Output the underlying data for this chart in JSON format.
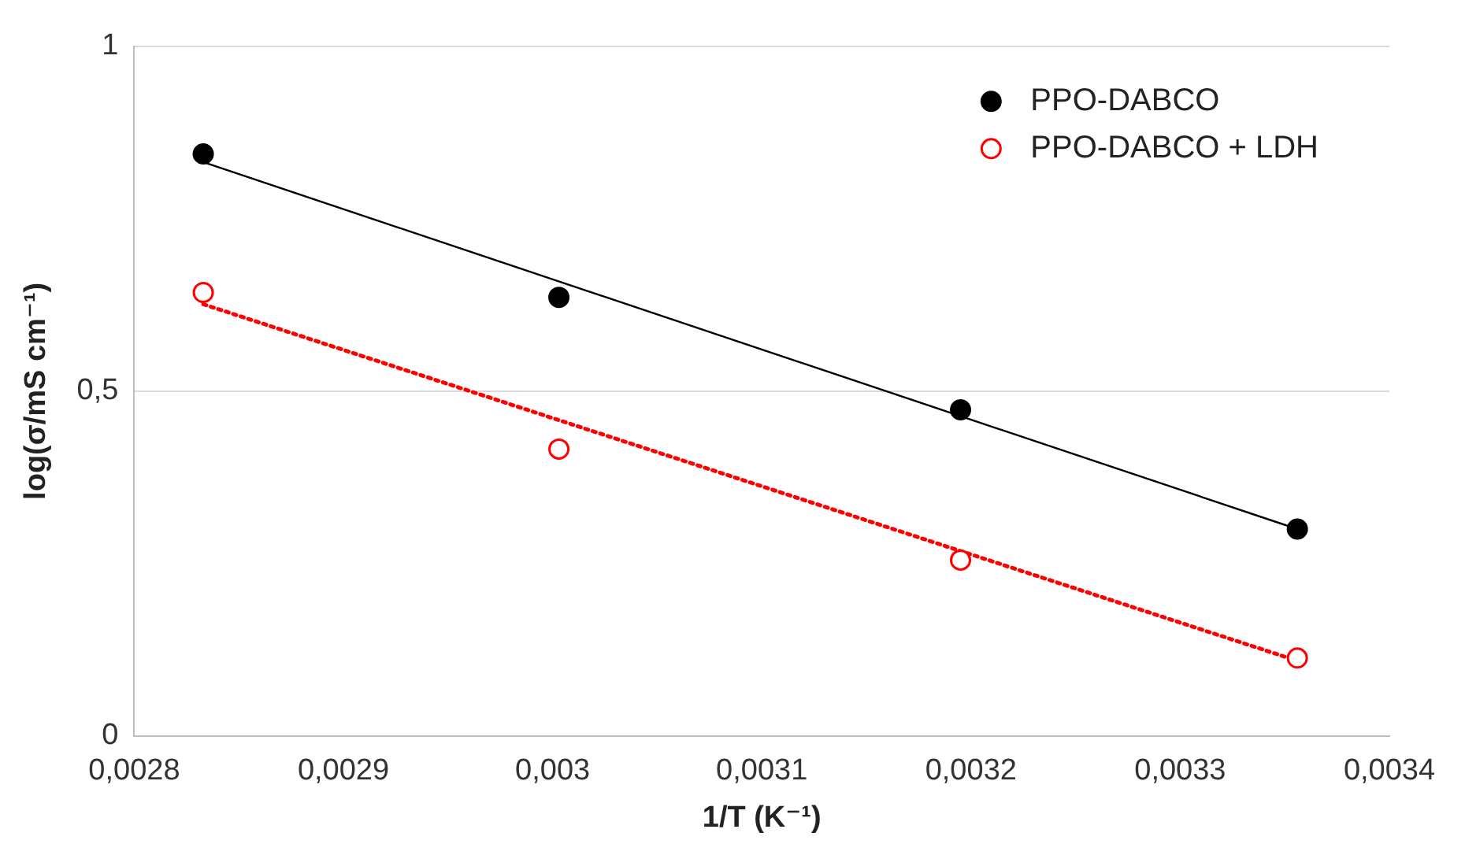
{
  "chart_data": {
    "type": "scatter",
    "xlabel": "1/T (K⁻¹)",
    "ylabel": "log(σ/mS cm⁻¹)",
    "xlim": [
      0.0028,
      0.0034
    ],
    "ylim": [
      0,
      1
    ],
    "xticks": [
      {
        "value": 0.0028,
        "label": "0,0028"
      },
      {
        "value": 0.0029,
        "label": "0,0029"
      },
      {
        "value": 0.003,
        "label": "0,003"
      },
      {
        "value": 0.0031,
        "label": "0,0031"
      },
      {
        "value": 0.0032,
        "label": "0,0032"
      },
      {
        "value": 0.0033,
        "label": "0,0033"
      },
      {
        "value": 0.0034,
        "label": "0,0034"
      }
    ],
    "yticks": [
      0,
      {
        "value": 0.5,
        "label": "0,5"
      },
      1
    ],
    "grid": "y",
    "legend": "top right",
    "series": [
      {
        "name": "PPO-DABCO",
        "type": "scatter",
        "color": "#000000",
        "marker": "circle",
        "x": [
          0.002833,
          0.003003,
          0.003195,
          0.003356
        ],
        "values": [
          0.844,
          0.636,
          0.473,
          0.3
        ]
      },
      {
        "name": "PPO-DABCO + LDH",
        "type": "scatter",
        "color": "#ff0000",
        "marker": "circle",
        "x": [
          0.002833,
          0.003003,
          0.003195,
          0.003356
        ],
        "values": [
          0.643,
          0.416,
          0.255,
          0.113
        ]
      },
      {
        "type": "line",
        "color": "#000000",
        "line_style": "solid",
        "marker": "none",
        "x": [
          0.002833,
          0.003356
        ],
        "values": [
          0.832,
          0.3
        ]
      },
      {
        "type": "line",
        "color": "#ff0000",
        "line_style": "dotted",
        "marker": "none",
        "x": [
          0.002833,
          0.003356
        ],
        "values": [
          0.626,
          0.109
        ]
      }
    ]
  }
}
